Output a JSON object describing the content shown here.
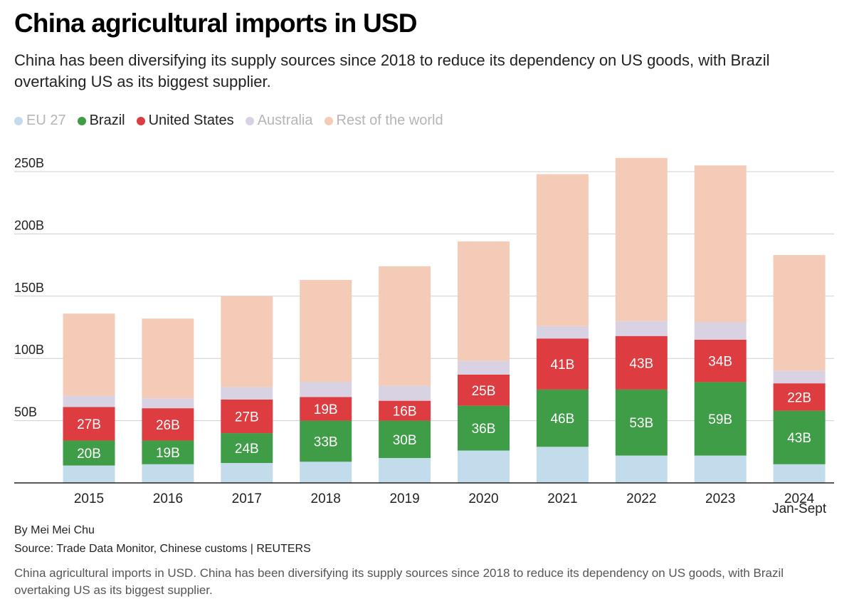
{
  "header": {
    "title": "China agricultural imports in USD",
    "subtitle": "China has been diversifying its supply sources since 2018 to reduce its dependency on US goods, with Brazil overtaking US as its biggest supplier."
  },
  "footer": {
    "credit": "By Mei Mei Chu",
    "source": "Source: Trade Data Monitor, Chinese customs | REUTERS",
    "caption": "China agricultural imports in USD. China has been diversifying its supply sources since 2018 to reduce its dependency on US goods, with Brazil overtaking US as its biggest supplier."
  },
  "chart_data": {
    "type": "bar",
    "stacked": true,
    "title": "China agricultural imports in USD",
    "xlabel": "",
    "ylabel": "",
    "ylim": [
      0,
      250
    ],
    "yticks": [
      "50B",
      "100B",
      "150B",
      "200B",
      "250B"
    ],
    "ytick_values": [
      50,
      100,
      150,
      200,
      250
    ],
    "grid": true,
    "legend_position": "top-left",
    "categories": [
      "2015",
      "2016",
      "2017",
      "2018",
      "2019",
      "2020",
      "2021",
      "2022",
      "2023",
      "2024"
    ],
    "category_sublabels": [
      "",
      "",
      "",
      "",
      "",
      "",
      "",
      "",
      "",
      "Jan-Sept"
    ],
    "series": [
      {
        "name": "EU 27",
        "color": "#c3dcec",
        "labelled": false,
        "values": [
          14,
          15,
          16,
          17,
          20,
          26,
          29,
          22,
          22,
          15
        ]
      },
      {
        "name": "Brazil",
        "color": "#3f9c47",
        "labelled": true,
        "values": [
          20,
          19,
          24,
          33,
          30,
          36,
          46,
          53,
          59,
          43
        ],
        "labels": [
          "20B",
          "19B",
          "24B",
          "33B",
          "30B",
          "36B",
          "46B",
          "53B",
          "59B",
          "43B"
        ]
      },
      {
        "name": "United States",
        "color": "#dd3c40",
        "labelled": true,
        "values": [
          27,
          26,
          27,
          19,
          16,
          25,
          41,
          43,
          34,
          22
        ],
        "labels": [
          "27B",
          "26B",
          "27B",
          "19B",
          "16B",
          "25B",
          "41B",
          "43B",
          "34B",
          "22B"
        ]
      },
      {
        "name": "Australia",
        "color": "#d9d2e3",
        "labelled": false,
        "values": [
          9,
          8,
          10,
          12,
          12,
          11,
          10,
          12,
          14,
          10
        ]
      },
      {
        "name": "Rest of the world",
        "color": "#f3cbb6",
        "labelled": false,
        "values": [
          66,
          64,
          73,
          82,
          96,
          96,
          122,
          131,
          126,
          93
        ]
      }
    ]
  },
  "legend_text_colors": {
    "EU 27": "#b5b5b5",
    "Brazil": "#222222",
    "United States": "#222222",
    "Australia": "#b5b5b5",
    "Rest of the world": "#b5b5b5"
  },
  "colors": {
    "axis": "#222222",
    "grid": "#cfcfcf",
    "bar_label": "#ffffff"
  }
}
